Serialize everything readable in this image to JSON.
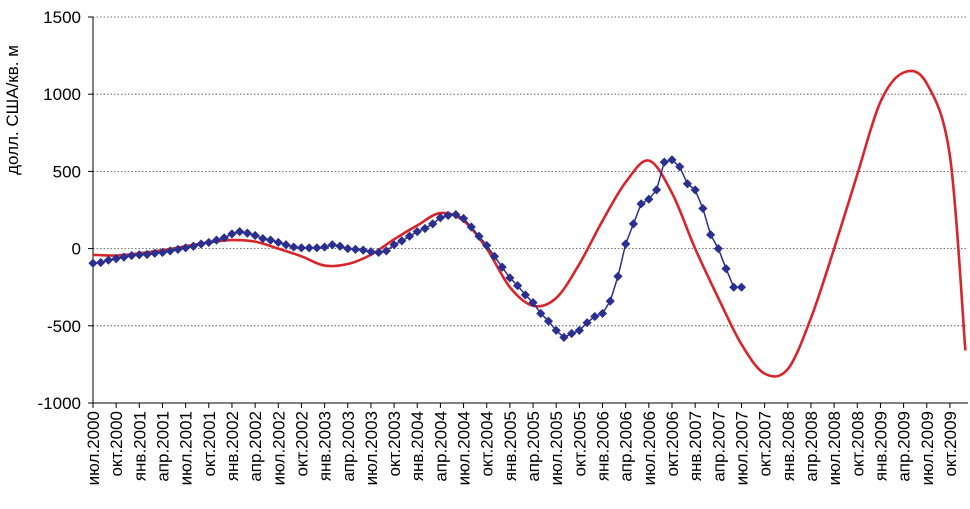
{
  "chart_data": {
    "type": "line",
    "title": "",
    "xlabel": "",
    "ylabel": "долл. США/кв. м",
    "ylim": [
      -1000,
      1500
    ],
    "yticks": [
      -1000,
      -500,
      0,
      500,
      1000,
      1500
    ],
    "grid": "horizontal dotted",
    "x_tick_labels": [
      "июл.2000",
      "окт.2000",
      "янв.2001",
      "апр.2001",
      "июл.2001",
      "окт.2001",
      "янв.2002",
      "апр.2002",
      "июл.2002",
      "окт.2002",
      "янв.2003",
      "апр.2003",
      "июл.2003",
      "окт.2003",
      "янв.2004",
      "апр.2004",
      "июл.2004",
      "окт.2004",
      "янв.2005",
      "апр.2005",
      "июл.2005",
      "окт.2005",
      "янв.2006",
      "апр.2006",
      "июл.2006",
      "окт.2006",
      "янв.2007",
      "апр.2007",
      "июл.2007",
      "окт.2007",
      "янв.2008",
      "апр.2008",
      "июл.2008",
      "окт.2008",
      "янв.2009",
      "апр.2009",
      "июл.2009",
      "окт.2009"
    ],
    "x_months_start": "2000-07",
    "series": [
      {
        "type": "line-markers",
        "color": "#2b2f8f",
        "marker": "diamond",
        "months": [
          "2000-07",
          "2000-08",
          "2000-09",
          "2000-10",
          "2000-11",
          "2000-12",
          "2001-01",
          "2001-02",
          "2001-03",
          "2001-04",
          "2001-05",
          "2001-06",
          "2001-07",
          "2001-08",
          "2001-09",
          "2001-10",
          "2001-11",
          "2001-12",
          "2002-01",
          "2002-02",
          "2002-03",
          "2002-04",
          "2002-05",
          "2002-06",
          "2002-07",
          "2002-08",
          "2002-09",
          "2002-10",
          "2002-11",
          "2002-12",
          "2003-01",
          "2003-02",
          "2003-03",
          "2003-04",
          "2003-05",
          "2003-06",
          "2003-07",
          "2003-08",
          "2003-09",
          "2003-10",
          "2003-11",
          "2003-12",
          "2004-01",
          "2004-02",
          "2004-03",
          "2004-04",
          "2004-05",
          "2004-06",
          "2004-07",
          "2004-08",
          "2004-09",
          "2004-10",
          "2004-11",
          "2004-12",
          "2005-01",
          "2005-02",
          "2005-03",
          "2005-04",
          "2005-05",
          "2005-06",
          "2005-07",
          "2005-08",
          "2005-09",
          "2005-10",
          "2005-11",
          "2005-12",
          "2006-01",
          "2006-02",
          "2006-03",
          "2006-04",
          "2006-05",
          "2006-06",
          "2006-07",
          "2006-08",
          "2006-09",
          "2006-10",
          "2006-11",
          "2006-12",
          "2007-01",
          "2007-02",
          "2007-03",
          "2007-04",
          "2007-05",
          "2007-06",
          "2007-07"
        ],
        "values": [
          -95,
          -90,
          -75,
          -65,
          -55,
          -45,
          -40,
          -38,
          -30,
          -25,
          -15,
          -5,
          5,
          15,
          30,
          40,
          55,
          70,
          95,
          110,
          100,
          85,
          65,
          55,
          40,
          25,
          10,
          5,
          5,
          5,
          10,
          25,
          15,
          0,
          -5,
          -10,
          -20,
          -25,
          -15,
          25,
          50,
          80,
          110,
          130,
          160,
          200,
          215,
          220,
          195,
          140,
          80,
          20,
          -50,
          -120,
          -190,
          -240,
          -300,
          -350,
          -420,
          -470,
          -530,
          -575,
          -550,
          -530,
          -480,
          -440,
          -420,
          -340,
          -180,
          30,
          160,
          290,
          320,
          380,
          560,
          575,
          530,
          420,
          380,
          260,
          90,
          0,
          -130,
          -250,
          -250
        ]
      },
      {
        "type": "line",
        "color": "#d8252b",
        "months": [
          "2000-07",
          "2000-10",
          "2001-01",
          "2001-04",
          "2001-07",
          "2001-10",
          "2002-01",
          "2002-04",
          "2002-07",
          "2002-10",
          "2003-01",
          "2003-04",
          "2003-07",
          "2003-10",
          "2004-01",
          "2004-04",
          "2004-07",
          "2004-10",
          "2005-01",
          "2005-04",
          "2005-07",
          "2005-10",
          "2006-01",
          "2006-04",
          "2006-07",
          "2006-10",
          "2007-01",
          "2007-04",
          "2007-07",
          "2007-10",
          "2008-01",
          "2008-04",
          "2008-07",
          "2008-10",
          "2009-01",
          "2009-04",
          "2009-07",
          "2009-10",
          "2009-12"
        ],
        "values": [
          -40,
          -45,
          -30,
          -10,
          15,
          40,
          55,
          45,
          0,
          -50,
          -110,
          -100,
          -40,
          60,
          150,
          230,
          180,
          0,
          -250,
          -370,
          -320,
          -100,
          180,
          430,
          570,
          360,
          0,
          -320,
          -620,
          -810,
          -780,
          -450,
          0,
          480,
          950,
          1140,
          1070,
          600,
          -660
        ]
      }
    ]
  }
}
